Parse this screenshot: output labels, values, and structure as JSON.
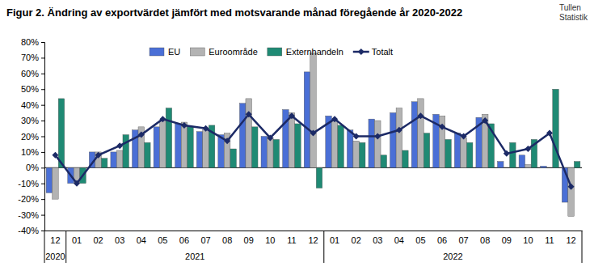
{
  "chart_data": {
    "type": "bar",
    "title": "Figur 2. Ändring av exportvärdet jämfört med motsvarande månad föregående år 2020-2022",
    "source": [
      "Tullen",
      "Statistik"
    ],
    "categories": [
      "12",
      "01",
      "02",
      "03",
      "04",
      "05",
      "06",
      "07",
      "08",
      "09",
      "10",
      "11",
      "12",
      "01",
      "02",
      "03",
      "04",
      "05",
      "06",
      "07",
      "08",
      "09",
      "10",
      "11",
      "12"
    ],
    "groups": [
      {
        "label": "2020",
        "count": 1
      },
      {
        "label": "2021",
        "count": 12
      },
      {
        "label": "2022",
        "count": 12
      }
    ],
    "series": [
      {
        "name": "EU",
        "color": "#4a6fd6",
        "type": "bar",
        "values": [
          -16,
          -10,
          10,
          10,
          24,
          26,
          28,
          23,
          21,
          41,
          20,
          37,
          61,
          33,
          24,
          31,
          35,
          42,
          34,
          22,
          32,
          4,
          8,
          1,
          -22
        ]
      },
      {
        "name": "Euroområde",
        "color": "#b3b3b3",
        "type": "bar",
        "values": [
          -20,
          -10,
          10,
          11,
          26,
          30,
          29,
          24,
          22,
          44,
          19,
          35,
          73,
          30,
          17,
          30,
          38,
          44,
          33,
          19,
          34,
          0,
          2,
          0,
          -31
        ]
      },
      {
        "name": "Externhandeln",
        "color": "#1f8a74",
        "type": "bar",
        "values": [
          44,
          -10,
          6,
          21,
          16,
          38,
          26,
          27,
          12,
          26,
          18,
          28,
          -13,
          27,
          16,
          8,
          11,
          22,
          18,
          16,
          28,
          16,
          18,
          50,
          4
        ]
      },
      {
        "name": "Totalt",
        "color": "#1c2a66",
        "type": "line",
        "marker": "diamond",
        "values": [
          8,
          -10,
          8,
          14,
          21,
          31,
          27,
          25,
          17,
          34,
          19,
          33,
          22,
          31,
          20,
          20,
          24,
          33,
          26,
          20,
          30,
          9,
          12,
          22,
          -12
        ]
      }
    ],
    "ylim": [
      -40,
      80
    ],
    "yticks": [
      {
        "value": -40,
        "label": "-40%"
      },
      {
        "value": -30,
        "label": "-30%"
      },
      {
        "value": -20,
        "label": "-20%"
      },
      {
        "value": -10,
        "label": "-10%"
      },
      {
        "value": 0,
        "label": "0%"
      },
      {
        "value": 10,
        "label": "10%"
      },
      {
        "value": 20,
        "label": "20%"
      },
      {
        "value": 30,
        "label": "30%"
      },
      {
        "value": 40,
        "label": "40%"
      },
      {
        "value": 50,
        "label": "50%"
      },
      {
        "value": 60,
        "label": "60%"
      },
      {
        "value": 70,
        "label": "70%"
      },
      {
        "value": 80,
        "label": "80%"
      }
    ],
    "grid": false,
    "legend": "top"
  }
}
